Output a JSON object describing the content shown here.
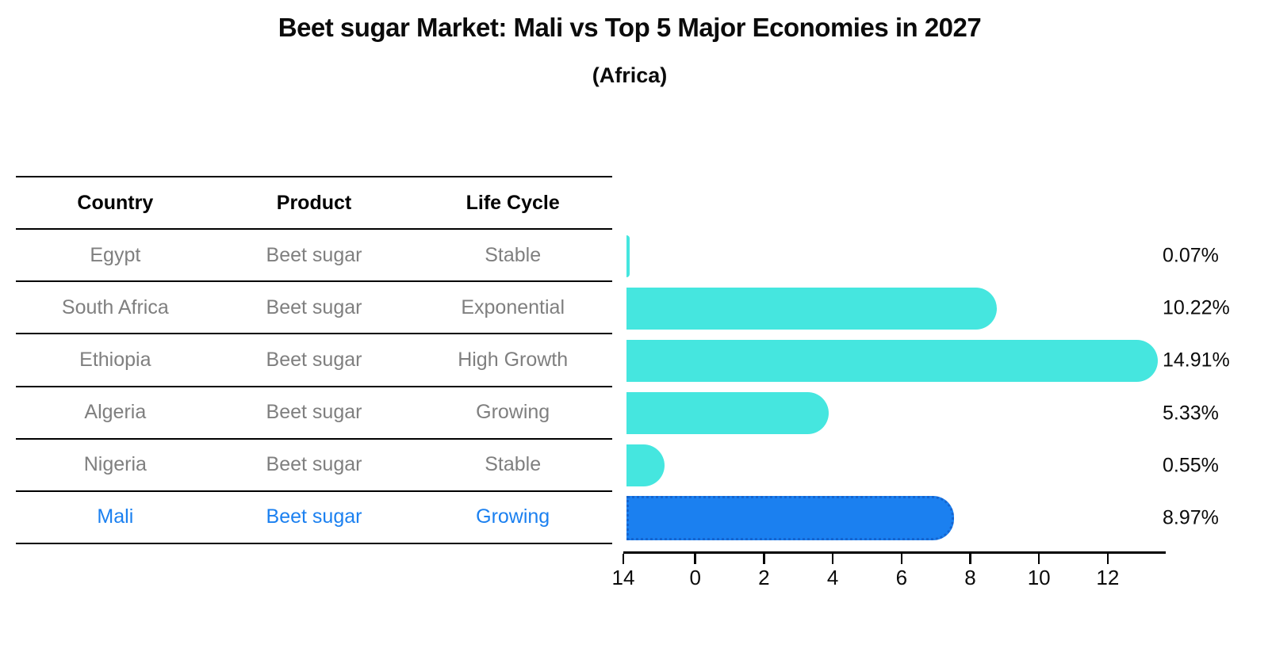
{
  "title": "Beet sugar Market: Mali vs Top 5 Major Economies in 2027",
  "subtitle": "(Africa)",
  "table": {
    "headers": [
      "Country",
      "Product",
      "Life Cycle"
    ],
    "rows": [
      {
        "country": "Egypt",
        "product": "Beet sugar",
        "life_cycle": "Stable",
        "highlight": false
      },
      {
        "country": "South Africa",
        "product": "Beet sugar",
        "life_cycle": "Exponential",
        "highlight": false
      },
      {
        "country": "Ethiopia",
        "product": "Beet sugar",
        "life_cycle": "High Growth",
        "highlight": false
      },
      {
        "country": "Algeria",
        "product": "Beet sugar",
        "life_cycle": "Growing",
        "highlight": false
      },
      {
        "country": "Nigeria",
        "product": "Beet sugar",
        "life_cycle": "Stable",
        "highlight": false
      },
      {
        "country": "Mali",
        "product": "Beet sugar",
        "life_cycle": "Growing",
        "highlight": true
      }
    ]
  },
  "chart_data": {
    "type": "bar",
    "orientation": "horizontal",
    "title": "Beet sugar Market: Mali vs Top 5 Major Economies in 2027",
    "subtitle": "(Africa)",
    "categories": [
      "Egypt",
      "South Africa",
      "Ethiopia",
      "Algeria",
      "Nigeria",
      "Mali"
    ],
    "values": [
      0.07,
      10.22,
      14.91,
      5.33,
      0.55,
      8.97
    ],
    "labels": [
      "0.07%",
      "10.22%",
      "14.91%",
      "5.33%",
      "0.55%",
      "8.97%"
    ],
    "x_ticks": [
      "0",
      "2",
      "4",
      "6",
      "8",
      "10",
      "12",
      "14"
    ],
    "xlim": [
      0,
      15.6
    ],
    "grid": false,
    "legend": false,
    "highlight_index": 5,
    "value_suffix": "%"
  },
  "colors": {
    "bar": "#45e6df",
    "highlight": "#1b80f0",
    "highlight_border": "#1565d0",
    "muted_text": "#7f7f7f",
    "text": "#0b0b0b"
  }
}
